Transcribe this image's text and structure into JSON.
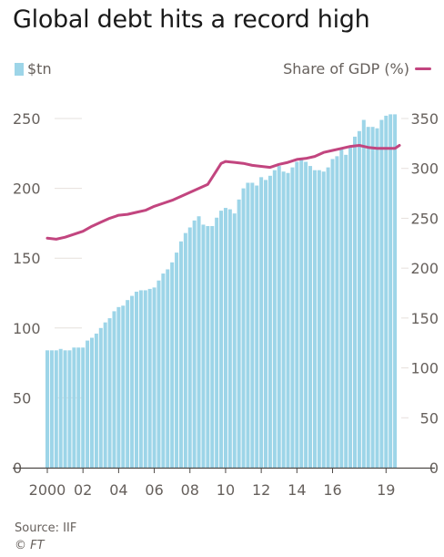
{
  "title": "Global debt hits a record high",
  "source": "Source: IIF",
  "credit": "© FT",
  "colors": {
    "bars": "#9dd5e8",
    "line": "#c2457f",
    "grid": "#e6e0dc",
    "text": "#66605c"
  },
  "chart_data": {
    "type": "bar",
    "title": "Global debt hits a record high",
    "x_tick_labels": [
      "2000",
      "02",
      "04",
      "06",
      "08",
      "10",
      "12",
      "14",
      "16",
      "19"
    ],
    "x_tick_years": [
      2000,
      2002,
      2004,
      2006,
      2008,
      2010,
      2012,
      2014,
      2016,
      2019
    ],
    "x_range": [
      2000,
      2019.75
    ],
    "y_left": {
      "ylim": [
        0,
        250
      ],
      "ticks": [
        0,
        50,
        100,
        150,
        200,
        250
      ]
    },
    "y_right": {
      "ylim": [
        0,
        350
      ],
      "ticks": [
        0,
        50,
        100,
        150,
        200,
        250,
        300,
        350
      ]
    },
    "grid": true,
    "legend_placement": "top",
    "series": [
      {
        "name": "$tn",
        "type": "bar",
        "axis": "left",
        "x": [
          2000.0,
          2000.25,
          2000.5,
          2000.75,
          2001.0,
          2001.25,
          2001.5,
          2001.75,
          2002.0,
          2002.25,
          2002.5,
          2002.75,
          2003.0,
          2003.25,
          2003.5,
          2003.75,
          2004.0,
          2004.25,
          2004.5,
          2004.75,
          2005.0,
          2005.25,
          2005.5,
          2005.75,
          2006.0,
          2006.25,
          2006.5,
          2006.75,
          2007.0,
          2007.25,
          2007.5,
          2007.75,
          2008.0,
          2008.25,
          2008.5,
          2008.75,
          2009.0,
          2009.25,
          2009.5,
          2009.75,
          2010.0,
          2010.25,
          2010.5,
          2010.75,
          2011.0,
          2011.25,
          2011.5,
          2011.75,
          2012.0,
          2012.25,
          2012.5,
          2012.75,
          2013.0,
          2013.25,
          2013.5,
          2013.75,
          2014.0,
          2014.25,
          2014.5,
          2014.75,
          2015.0,
          2015.25,
          2015.5,
          2015.75,
          2016.0,
          2016.25,
          2016.5,
          2016.75,
          2017.0,
          2017.25,
          2017.5,
          2017.75,
          2018.0,
          2018.25,
          2018.5,
          2018.75,
          2019.0,
          2019.25,
          2019.5
        ],
        "values": [
          84,
          84,
          84,
          85,
          84,
          84,
          86,
          86,
          86,
          91,
          93,
          96,
          100,
          104,
          107,
          112,
          115,
          116,
          120,
          123,
          126,
          127,
          127,
          128,
          129,
          134,
          139,
          142,
          147,
          154,
          162,
          168,
          172,
          177,
          180,
          174,
          173,
          173,
          179,
          184,
          186,
          185,
          182,
          192,
          200,
          204,
          204,
          202,
          208,
          206,
          209,
          213,
          216,
          212,
          211,
          215,
          219,
          221,
          219,
          216,
          213,
          213,
          212,
          215,
          221,
          223,
          228,
          224,
          230,
          237,
          241,
          249,
          244,
          244,
          243,
          249,
          252,
          253,
          253
        ]
      },
      {
        "name": "Share of GDP (%)",
        "type": "line",
        "axis": "right",
        "x": [
          2000.0,
          2000.5,
          2001.0,
          2001.5,
          2002.0,
          2002.5,
          2003.0,
          2003.5,
          2004.0,
          2004.5,
          2005.0,
          2005.5,
          2006.0,
          2006.5,
          2007.0,
          2007.5,
          2008.0,
          2008.5,
          2009.0,
          2009.25,
          2009.5,
          2009.75,
          2010.0,
          2010.5,
          2011.0,
          2011.5,
          2012.0,
          2012.5,
          2013.0,
          2013.5,
          2014.0,
          2014.5,
          2015.0,
          2015.5,
          2016.0,
          2016.5,
          2017.0,
          2017.5,
          2018.0,
          2018.5,
          2019.0,
          2019.5,
          2019.75
        ],
        "values": [
          230,
          229,
          231,
          234,
          237,
          242,
          246,
          250,
          253,
          254,
          256,
          258,
          262,
          265,
          268,
          272,
          276,
          280,
          284,
          291,
          298,
          305,
          307,
          306,
          305,
          303,
          302,
          301,
          304,
          306,
          309,
          310,
          312,
          316,
          318,
          320,
          322,
          323,
          321,
          320,
          320,
          320,
          323
        ]
      }
    ]
  }
}
